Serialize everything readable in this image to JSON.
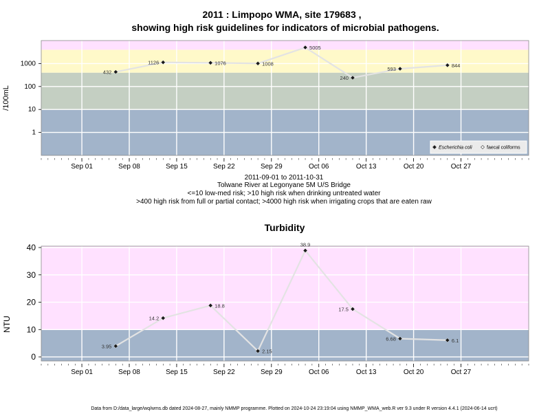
{
  "title_line1": "2011 : Limpopo WMA, site 179683 ,",
  "title_line2": "showing high risk guidelines for indicators of microbial pathogens.",
  "subtitle_lines": [
    "2011-09-01 to 2011-10-31",
    "Tolwane River at Legonyane 5M U/S Bridge",
    "<=10 low-med risk; >10 high risk when drinking untreated water",
    ">400 high risk from full or partial contact; >4000 high risk when irrigating crops that are eaten raw"
  ],
  "footer": "Data from D:/data_large/wq/wms.db dated 2024-08-27, mainly NMMP programme. Plotted on 2024-10-24 23:19:04 using NMMP_WMA_web.R ver 9.3 under R version 4.4.1 (2024-06-14 ucrt)",
  "colors": {
    "band_low": "#a2b4ca",
    "band_mid": "#c4cfc2",
    "band_high": "#fff9c9",
    "band_top": "#ffe1ff",
    "line": "#e3e3e3",
    "point": "#1a1a1a",
    "grid": "#ffffff"
  },
  "chart_data": [
    {
      "type": "line",
      "title": "",
      "ylabel": "/100mL",
      "y_scale": "log10",
      "ylim": [
        0.1,
        10000
      ],
      "y_ticks": [
        1,
        10,
        100,
        1000
      ],
      "y_tick_labels": [
        "1",
        "10",
        "100",
        "1000"
      ],
      "x_type": "date",
      "xlim": [
        "2011-08-26",
        "2011-11-06"
      ],
      "x_ticks": [
        "2011-09-01",
        "2011-09-08",
        "2011-09-15",
        "2011-09-22",
        "2011-09-29",
        "2011-10-06",
        "2011-10-13",
        "2011-10-20",
        "2011-10-27"
      ],
      "x_tick_labels": [
        "Sep 01",
        "Sep 08",
        "Sep 15",
        "Sep 22",
        "Sep 29",
        "Oct 06",
        "Oct 13",
        "Oct 20",
        "Oct 27"
      ],
      "bands": [
        {
          "from": 0.1,
          "to": 10,
          "color_key": "band_low"
        },
        {
          "from": 10,
          "to": 400,
          "color_key": "band_mid"
        },
        {
          "from": 400,
          "to": 4000,
          "color_key": "band_high"
        },
        {
          "from": 4000,
          "to": 10000,
          "color_key": "band_top"
        }
      ],
      "legend": {
        "position": "bottom-right",
        "entries": [
          {
            "label": "Escherichia coli",
            "marker": "filled-diamond",
            "italic": true
          },
          {
            "label": "faecal coliforms",
            "marker": "open-diamond",
            "italic": false
          }
        ]
      },
      "series": [
        {
          "name": "Escherichia coli",
          "points": [
            {
              "x": "2011-09-06",
              "y": 432,
              "label": "432",
              "label_side": "left"
            },
            {
              "x": "2011-09-13",
              "y": 1126,
              "label": "1126",
              "label_side": "left"
            },
            {
              "x": "2011-09-20",
              "y": 1076,
              "label": "1076",
              "label_side": "right"
            },
            {
              "x": "2011-09-27",
              "y": 1008,
              "label": "1008",
              "label_side": "right"
            },
            {
              "x": "2011-10-04",
              "y": 5005,
              "label": "5005",
              "label_side": "right"
            },
            {
              "x": "2011-10-11",
              "y": 240,
              "label": "240",
              "label_side": "left"
            },
            {
              "x": "2011-10-18",
              "y": 593,
              "label": "593",
              "label_side": "left"
            },
            {
              "x": "2011-10-25",
              "y": 844,
              "label": "844",
              "label_side": "right"
            }
          ]
        }
      ]
    },
    {
      "type": "line",
      "title": "Turbidity",
      "ylabel": "NTU",
      "y_scale": "linear",
      "ylim": [
        -1.5,
        40.5
      ],
      "y_ticks": [
        0,
        10,
        20,
        30,
        40
      ],
      "y_tick_labels": [
        "0",
        "10",
        "20",
        "30",
        "40"
      ],
      "x_type": "date",
      "xlim": [
        "2011-08-26",
        "2011-11-06"
      ],
      "x_ticks": [
        "2011-09-01",
        "2011-09-08",
        "2011-09-15",
        "2011-09-22",
        "2011-09-29",
        "2011-10-06",
        "2011-10-13",
        "2011-10-20",
        "2011-10-27"
      ],
      "x_tick_labels": [
        "Sep 01",
        "Sep 08",
        "Sep 15",
        "Sep 22",
        "Sep 29",
        "Oct 06",
        "Oct 13",
        "Oct 20",
        "Oct 27"
      ],
      "bands": [
        {
          "from": -1.5,
          "to": 10,
          "color_key": "band_low"
        },
        {
          "from": 10,
          "to": 40.5,
          "color_key": "band_top"
        }
      ],
      "series": [
        {
          "name": "",
          "points": [
            {
              "x": "2011-09-06",
              "y": 3.95,
              "label": "3.95",
              "label_side": "left"
            },
            {
              "x": "2011-09-13",
              "y": 14.2,
              "label": "14.2",
              "label_side": "left"
            },
            {
              "x": "2011-09-20",
              "y": 18.8,
              "label": "18.8",
              "label_side": "right"
            },
            {
              "x": "2011-09-27",
              "y": 2.15,
              "label": "2.15",
              "label_side": "right"
            },
            {
              "x": "2011-10-04",
              "y": 38.9,
              "label": "38.9",
              "label_side": "above"
            },
            {
              "x": "2011-10-11",
              "y": 17.5,
              "label": "17.5",
              "label_side": "left"
            },
            {
              "x": "2011-10-18",
              "y": 6.68,
              "label": "6.68",
              "label_side": "left"
            },
            {
              "x": "2011-10-25",
              "y": 6.1,
              "label": "6.1",
              "label_side": "right"
            }
          ]
        }
      ]
    }
  ]
}
